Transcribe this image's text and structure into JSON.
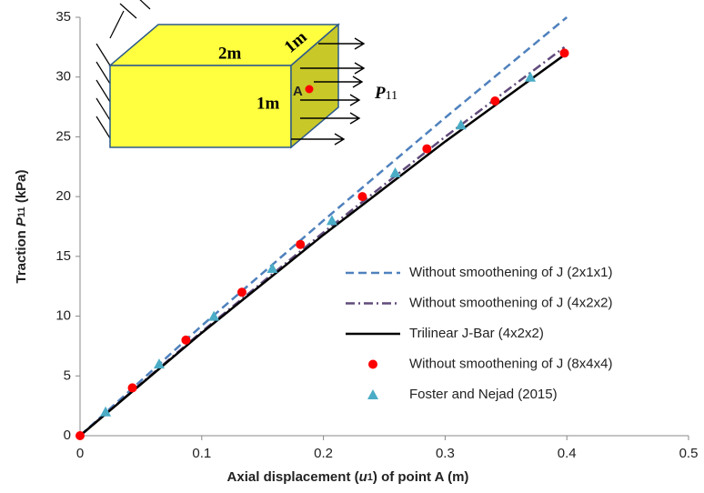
{
  "chart_data": {
    "type": "line",
    "x_label": [
      "Axial displacement (",
      "u",
      "1",
      ") of point A (m)"
    ],
    "y_label": [
      "Traction ",
      "P",
      "11",
      " (kPa)"
    ],
    "inset_labels": [
      "2m",
      "1m",
      "1m",
      "A",
      "P",
      "11"
    ],
    "xlim": [
      0,
      0.5
    ],
    "xticks": [
      0,
      0.1,
      0.2,
      0.3,
      0.4,
      0.5
    ],
    "ylim": [
      0,
      35
    ],
    "yticks": [
      0,
      5,
      10,
      15,
      20,
      25,
      30,
      35
    ],
    "legend": "lower right",
    "series": [
      {
        "name": "Without smoothening of J (2x1x1)",
        "color": "#4f81bd",
        "style": "dashed",
        "x": [
          0,
          0.1,
          0.2,
          0.3,
          0.4
        ],
        "values": [
          0,
          9.2,
          18,
          26.6,
          35
        ]
      },
      {
        "name": "Without smoothening of J (4x2x2)",
        "color": "#604a7b",
        "style": "dashdot",
        "x": [
          0,
          0.1,
          0.2,
          0.3,
          0.398
        ],
        "values": [
          0,
          8.7,
          17,
          25,
          32.5
        ]
      },
      {
        "name": "Trilinear J-Bar (4x2x2)",
        "color": "#000000",
        "style": "solid",
        "x": [
          0,
          0.1,
          0.2,
          0.3,
          0.4
        ],
        "values": [
          0,
          8.6,
          16.8,
          24.6,
          32
        ]
      },
      {
        "name": "Without smoothening of J (8x4x4)",
        "color": "#ff0000",
        "style": "circle",
        "x": [
          0,
          0.043,
          0.087,
          0.133,
          0.181,
          0.232,
          0.285,
          0.341,
          0.398
        ],
        "values": [
          0,
          4,
          8,
          12,
          16,
          20,
          24,
          28,
          32
        ]
      },
      {
        "name": "Foster and Nejad (2015)",
        "color": "#4bacc6",
        "style": "triangle",
        "x": [
          0.021,
          0.065,
          0.11,
          0.158,
          0.207,
          0.259,
          0.313,
          0.37
        ],
        "values": [
          2,
          6,
          10,
          14,
          18,
          22,
          26,
          30
        ]
      }
    ]
  }
}
